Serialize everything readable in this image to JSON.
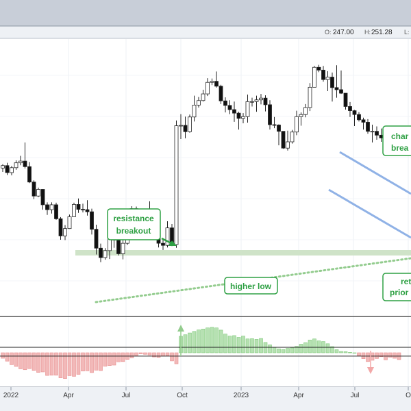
{
  "header": {
    "open_label": "O:",
    "open_value": "247.00",
    "high_label": "H:",
    "high_value": "251.28",
    "low_label": "L:"
  },
  "annotations": {
    "resistance": [
      "resistance",
      "breakout"
    ],
    "higher_low": "higher low",
    "channel": [
      "char",
      "brea"
    ],
    "retest": [
      "ret",
      "prior"
    ]
  },
  "colors": {
    "green": "#2ea043",
    "green_zone": "#cfe3c8",
    "channel": "#90b2e6",
    "hist_pos": "#b6e1b2",
    "hist_neg": "#f2b9b9",
    "up_candle": "#ffffff",
    "down_candle": "#111111"
  },
  "icons": [
    "arrow-right-icon",
    "arrow-up-icon",
    "arrow-down-icon"
  ],
  "chart_data": [
    {
      "type": "candlestick",
      "title": "",
      "y_range": [
        207,
        282
      ],
      "x_ticks": [
        "2022",
        "Apr",
        "Jul",
        "Oct",
        "2023",
        "Apr",
        "Jul",
        "O"
      ],
      "candles": [
        [
          246.1,
          247.2,
          245.0,
          246.8
        ],
        [
          246.8,
          247.6,
          244.1,
          244.8
        ],
        [
          244.8,
          246.7,
          244.0,
          246.2
        ],
        [
          246.2,
          248.3,
          245.6,
          247.6
        ],
        [
          247.6,
          249.6,
          246.9,
          248.1
        ],
        [
          248.1,
          253.4,
          246.0,
          246.5
        ],
        [
          246.5,
          247.8,
          241.8,
          242.1
        ],
        [
          242.1,
          242.6,
          237.2,
          238.1
        ],
        [
          238.1,
          240.5,
          237.8,
          240.0
        ],
        [
          240.0,
          240.1,
          234.2,
          235.6
        ],
        [
          235.6,
          236.3,
          232.7,
          234.2
        ],
        [
          234.2,
          236.3,
          233.1,
          235.6
        ],
        [
          235.6,
          236.2,
          231.3,
          231.6
        ],
        [
          231.6,
          232.1,
          225.6,
          226.7
        ],
        [
          226.7,
          229.8,
          225.5,
          228.8
        ],
        [
          228.8,
          232.8,
          228.7,
          232.2
        ],
        [
          232.2,
          236.2,
          232.1,
          235.7
        ],
        [
          235.7,
          237.4,
          233.3,
          234.3
        ],
        [
          234.3,
          235.9,
          233.4,
          234.2
        ],
        [
          234.2,
          236.9,
          232.5,
          233.6
        ],
        [
          233.6,
          234.5,
          227.1,
          228.6
        ],
        [
          228.6,
          229.9,
          221.4,
          223.2
        ],
        [
          223.2,
          224.5,
          219.2,
          220.5
        ],
        [
          220.5,
          223.2,
          219.9,
          222.5
        ],
        [
          222.5,
          227.2,
          220.1,
          226.1
        ],
        [
          226.1,
          227.7,
          223.3,
          225.5
        ],
        [
          225.5,
          226.4,
          221.1,
          221.6
        ],
        [
          221.6,
          227.8,
          220.0,
          224.6
        ],
        [
          224.6,
          233.0,
          224.1,
          232.5
        ],
        [
          232.5,
          235.2,
          231.0,
          234.5
        ],
        [
          234.5,
          235.1,
          230.4,
          230.7
        ],
        [
          230.7,
          231.2,
          227.5,
          228.2
        ],
        [
          228.2,
          234.1,
          227.5,
          233.0
        ],
        [
          233.0,
          236.6,
          231.8,
          233.8
        ],
        [
          233.8,
          234.4,
          230.5,
          233.6
        ],
        [
          233.6,
          233.9,
          223.4,
          224.6
        ],
        [
          224.6,
          225.7,
          222.7,
          224.0
        ],
        [
          224.0,
          230.9,
          223.4,
          229.0
        ],
        [
          229.0,
          230.1,
          223.8,
          224.2
        ],
        [
          224.2,
          259.7,
          223.3,
          258.2
        ],
        [
          258.2,
          261.5,
          254.4,
          258.3
        ],
        [
          258.3,
          260.8,
          254.6,
          256.5
        ],
        [
          256.5,
          261.4,
          256.2,
          260.7
        ],
        [
          260.7,
          266.8,
          259.4,
          264.1
        ],
        [
          264.1,
          266.4,
          263.4,
          265.4
        ],
        [
          265.4,
          268.5,
          265.1,
          267.3
        ],
        [
          267.3,
          271.8,
          266.7,
          270.6
        ],
        [
          270.6,
          271.7,
          269.8,
          270.9
        ],
        [
          270.9,
          273.7,
          269.1,
          269.5
        ],
        [
          269.5,
          269.9,
          264.4,
          265.3
        ],
        [
          265.3,
          266.3,
          262.0,
          264.0
        ],
        [
          264.0,
          265.5,
          261.5,
          262.8
        ],
        [
          262.8,
          265.1,
          259.3,
          261.8
        ],
        [
          261.8,
          262.2,
          257.1,
          260.3
        ],
        [
          260.3,
          261.8,
          258.9,
          260.8
        ],
        [
          260.8,
          267.1,
          259.1,
          265.1
        ],
        [
          265.1,
          266.2,
          263.7,
          265.1
        ],
        [
          265.1,
          266.8,
          262.2,
          265.6
        ],
        [
          265.6,
          267.3,
          264.3,
          266.1
        ],
        [
          266.1,
          266.9,
          262.3,
          264.2
        ],
        [
          264.2,
          265.5,
          257.1,
          258.5
        ],
        [
          258.5,
          260.7,
          257.5,
          258.4
        ],
        [
          258.4,
          258.6,
          252.6,
          256.6
        ],
        [
          256.6,
          256.6,
          251.6,
          251.8
        ],
        [
          251.8,
          256.8,
          251.1,
          253.6
        ],
        [
          253.6,
          257.0,
          253.1,
          256.4
        ],
        [
          256.4,
          262.5,
          255.5,
          260.8
        ],
        [
          260.8,
          262.0,
          258.2,
          261.4
        ],
        [
          261.4,
          264.4,
          260.6,
          263.4
        ],
        [
          263.4,
          270.4,
          262.4,
          269.2
        ],
        [
          269.2,
          275.3,
          269.2,
          274.9
        ],
        [
          274.9,
          275.6,
          273.5,
          274.1
        ],
        [
          274.1,
          275.3,
          270.8,
          271.4
        ],
        [
          271.4,
          273.8,
          268.1,
          272.1
        ],
        [
          272.1,
          273.4,
          265.1,
          269.1
        ],
        [
          269.1,
          275.5,
          266.2,
          268.5
        ],
        [
          268.5,
          274.0,
          267.3,
          267.5
        ],
        [
          267.5,
          267.5,
          262.8,
          263.7
        ],
        [
          263.7,
          265.0,
          260.7,
          262.5
        ],
        [
          262.5,
          262.7,
          258.1,
          261.4
        ],
        [
          261.4,
          262.1,
          259.4,
          259.9
        ],
        [
          259.9,
          260.5,
          257.1,
          259.2
        ],
        [
          259.2,
          260.1,
          255.9,
          256.6
        ],
        [
          256.6,
          258.5,
          253.4,
          256.6
        ],
        [
          256.6,
          258.0,
          254.2,
          255.5
        ],
        [
          255.5,
          257.4,
          253.6,
          254.7
        ],
        [
          254.7,
          255.5,
          252.4,
          254.5
        ],
        [
          254.5,
          254.8,
          253.3,
          253.7
        ],
        [
          253.7,
          255.0,
          252.0,
          252.5
        ],
        [
          252.5,
          254.4,
          252.0,
          252.8
        ]
      ],
      "indicator": {
        "name": "",
        "values": [
          -2.5,
          -3.8,
          -5.4,
          -6.2,
          -7.3,
          -7.7,
          -7.2,
          -8.0,
          -8.9,
          -8.7,
          -10.3,
          -10.2,
          -10.2,
          -11.4,
          -11.7,
          -10.4,
          -10.7,
          -9.8,
          -8.3,
          -8.2,
          -9.0,
          -7.9,
          -8.1,
          -6.1,
          -5.8,
          -5.6,
          -4.1,
          -4.0,
          -3.0,
          -2.3,
          -1.2,
          -0.5,
          -0.7,
          -1.0,
          -1.9,
          -2.1,
          -1.5,
          -1.3,
          -3.7,
          -5.0,
          7.5,
          8.2,
          9.0,
          9.7,
          10.4,
          10.8,
          11.3,
          11.6,
          11.3,
          10.3,
          8.5,
          7.6,
          7.8,
          7.0,
          7.6,
          6.3,
          6.4,
          6.1,
          6.5,
          4.7,
          3.6,
          2.4,
          1.8,
          1.5,
          2.0,
          2.2,
          2.9,
          3.9,
          4.6,
          5.8,
          6.3,
          5.4,
          5.1,
          4.1,
          2.8,
          1.4,
          0.6,
          0.5,
          0.2,
          0.0,
          -1.3,
          -2.7,
          -4.0,
          -3.4,
          -2.6,
          -1.8,
          -3.2,
          -2.0,
          -2.5,
          -3.1
        ],
        "y_range": [
          -14,
          14
        ],
        "hlines": [
          2.5,
          -1.5
        ]
      }
    }
  ]
}
